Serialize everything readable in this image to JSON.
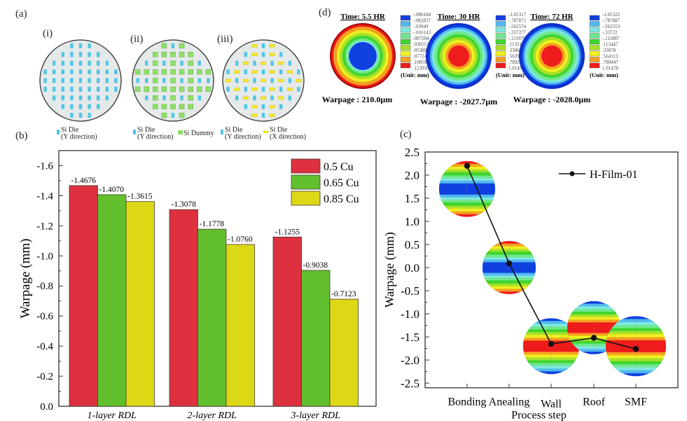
{
  "panels": {
    "a": {
      "label": "(a)",
      "wafers": [
        {
          "label": "(i)",
          "legend": [
            {
              "name": "si-die-y",
              "text1": "Si Die",
              "text2": "(Y direction)",
              "color": "#4fc6e6"
            }
          ]
        },
        {
          "label": "(ii)",
          "legend": [
            {
              "name": "si-die-y",
              "text1": "Si Die",
              "text2": "(Y direction)",
              "color": "#4fc6e6"
            },
            {
              "name": "si-dummy",
              "text1": "Si Dummy",
              "text2": "",
              "color": "#8fe06a"
            }
          ]
        },
        {
          "label": "(iii)",
          "legend": [
            {
              "name": "si-die-y",
              "text1": "Si Die",
              "text2": "(Y direction)",
              "color": "#4fc6e6"
            },
            {
              "name": "si-die-x",
              "text1": "Si Die",
              "text2": "(X direction)",
              "color": "#f2ea2a"
            }
          ]
        }
      ],
      "colors": {
        "wafer_fill": "#e6e9ea",
        "die_y": "#4fc6e6",
        "dummy": "#8fe06a",
        "die_x": "#f2ea2a"
      }
    },
    "b": {
      "label": "(b)"
    },
    "c": {
      "label": "(c)"
    },
    "d": {
      "label": "(d)",
      "sims": [
        {
          "title": "Time: 5.5 HR",
          "warpage": "Warpage : 210.0μm",
          "center": "blue",
          "scale": [
            "-.086184",
            "-.062837",
            "-.03949",
            "-.016143",
            ".007204",
            ".030551",
            ".053898",
            ".077245",
            ".100592",
            ".123939"
          ],
          "unit": "(Unit: mm)"
        },
        {
          "title": "Time: 30 HR",
          "warpage": "Warpage : -2027.7μm",
          "center": "red",
          "scale": [
            "-1.01317",
            "-.787872",
            "-.562574",
            "-.337277",
            "-.111979",
            ".113319",
            ".338617",
            ".563914",
            ".789212",
            "1.01451"
          ],
          "unit": "(Unit: mm)"
        },
        {
          "title": "Time: 72 HR",
          "warpage": "Warpage : -2028.0μm",
          "center": "red",
          "scale": [
            "-1.01322",
            "-.787887",
            "-.562553",
            "-.33722",
            "-.111887",
            ".113447",
            ".33878",
            ".564113",
            ".789447",
            "1.01478"
          ],
          "unit": "(Unit: mm)"
        }
      ],
      "scale_colors": [
        "#1040e0",
        "#4fb8f0",
        "#7fe8e0",
        "#6fe88f",
        "#3fd62f",
        "#a8e02a",
        "#f0f020",
        "#f5a020",
        "#ee1c1c"
      ]
    }
  },
  "chart_data": [
    {
      "type": "bar",
      "panel": "(b)",
      "title": "",
      "xlabel": "",
      "ylabel": "Warpage (mm)",
      "categories": [
        "1-layer RDL",
        "2-layer RDL",
        "3-layer RDL"
      ],
      "series": [
        {
          "name": "0.5 Cu",
          "color": "#dd3140",
          "values": [
            -1.4676,
            -1.3078,
            -1.1255
          ],
          "labels": [
            "-1.4676",
            "-1.3078",
            "-1.1255"
          ]
        },
        {
          "name": "0.65 Cu",
          "color": "#62c02e",
          "values": [
            -1.407,
            -1.1778,
            -0.9038
          ],
          "labels": [
            "-1.4070",
            "-1.1778",
            "-0.9038"
          ]
        },
        {
          "name": "0.85 Cu",
          "color": "#dcd816",
          "values": [
            -1.3615,
            -1.076,
            -0.7123
          ],
          "labels": [
            "-1.3615",
            "-1.0760",
            "-0.7123"
          ]
        }
      ],
      "ylim": [
        0.0,
        -1.7
      ],
      "yticks": [
        0.0,
        -0.2,
        -0.4,
        -0.6,
        -0.8,
        -1.0,
        -1.2,
        -1.4,
        -1.6
      ],
      "ytick_labels": [
        "0.0",
        "-0.2",
        "-0.4",
        "-0.6",
        "-0.8",
        "-1.0",
        "-1.2",
        "-1.4",
        "-1.6"
      ],
      "y_inverted": true,
      "legend": "top-right",
      "grid": false
    },
    {
      "type": "line",
      "panel": "(c)",
      "title": "",
      "xlabel": "Process step",
      "ylabel": "Warpage (mm)",
      "categories": [
        "Bonding",
        "Anealing",
        "Wall",
        "Roof",
        "SMF"
      ],
      "series": [
        {
          "name": "H-Film-01",
          "color": "#111111",
          "values": [
            2.2,
            0.09,
            -1.65,
            -1.52,
            -1.76
          ]
        }
      ],
      "ylim": [
        -2.6,
        2.5
      ],
      "yticks": [
        2.5,
        2.0,
        1.5,
        1.0,
        0.5,
        0.0,
        -0.5,
        -1.0,
        -1.5,
        -2.0,
        -2.5
      ],
      "ytick_labels": [
        "2.5",
        "2.0",
        "1.5",
        "1.0",
        "0.5",
        "0.0",
        "-0.5",
        "-1.0",
        "-1.5",
        "-2.0",
        "-2.5"
      ],
      "inset_spheres": [
        {
          "step": "Bonding",
          "center_value": 1.7,
          "band": "blue"
        },
        {
          "step": "Anealing",
          "center_value": 0.0,
          "band": "blue"
        },
        {
          "step": "Wall",
          "center_value": -1.7,
          "band": "red"
        },
        {
          "step": "Roof",
          "center_value": -1.3,
          "band": "red"
        },
        {
          "step": "SMF",
          "center_value": -1.7,
          "band": "red"
        }
      ],
      "legend": "top-right",
      "grid": false
    }
  ]
}
